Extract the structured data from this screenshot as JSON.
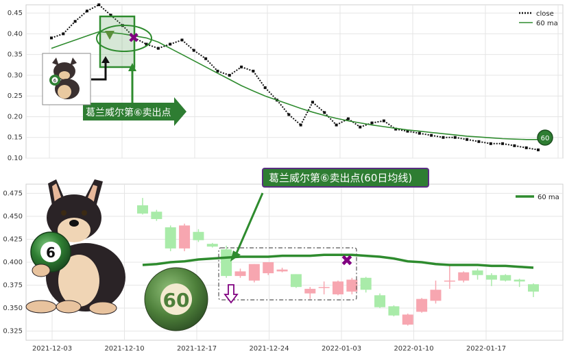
{
  "chart_data": [
    {
      "type": "line",
      "panel": "overview",
      "ylim": [
        0.1,
        0.47
      ],
      "yticks": [
        "0.10",
        "0.15",
        "0.20",
        "0.25",
        "0.30",
        "0.35",
        "0.40",
        "0.45"
      ],
      "ytick_values": [
        0.1,
        0.15,
        0.2,
        0.25,
        0.3,
        0.35,
        0.4,
        0.45
      ],
      "grid": true,
      "legend_position": "top-right",
      "series": [
        {
          "name": "close",
          "style": "dotted",
          "color": "#111111",
          "values": [
            0.39,
            0.4,
            0.43,
            0.455,
            0.47,
            0.445,
            0.42,
            0.39,
            0.375,
            0.365,
            0.375,
            0.385,
            0.36,
            0.34,
            0.31,
            0.3,
            0.32,
            0.31,
            0.27,
            0.24,
            0.205,
            0.18,
            0.235,
            0.21,
            0.18,
            0.195,
            0.175,
            0.185,
            0.19,
            0.17,
            0.165,
            0.16,
            0.155,
            0.15,
            0.15,
            0.145,
            0.14,
            0.135,
            0.135,
            0.13,
            0.125,
            0.12
          ]
        },
        {
          "name": "60 ma",
          "style": "solid",
          "color": "#2e8b2e",
          "values": [
            0.365,
            0.375,
            0.385,
            0.395,
            0.405,
            0.403,
            0.4,
            0.395,
            0.39,
            0.38,
            0.365,
            0.35,
            0.335,
            0.32,
            0.305,
            0.29,
            0.275,
            0.262,
            0.25,
            0.24,
            0.23,
            0.22,
            0.211,
            0.203,
            0.196,
            0.19,
            0.185,
            0.18,
            0.176,
            0.172,
            0.168,
            0.165,
            0.162,
            0.159,
            0.156,
            0.153,
            0.151,
            0.149,
            0.147,
            0.146,
            0.145,
            0.145
          ]
        }
      ],
      "annotation": "葛兰威尔第⑥卖出点",
      "ma_end_label": "60",
      "sell_point_index": 5
    },
    {
      "type": "candlestick",
      "panel": "zoom",
      "x_dates": [
        "2021-12-03",
        "2021-12-10",
        "2021-12-17",
        "2021-12-24",
        "2022-01-03",
        "2022-01-10",
        "2022-01-17"
      ],
      "ylim": [
        0.315,
        0.485
      ],
      "yticks": [
        "0.325",
        "0.350",
        "0.375",
        "0.400",
        "0.425",
        "0.450",
        "0.475"
      ],
      "ytick_values": [
        0.325,
        0.35,
        0.375,
        0.4,
        0.425,
        0.45,
        0.475
      ],
      "grid": true,
      "legend_position": "top-right",
      "legend": [
        "60 ma"
      ],
      "annotation": "葛兰威尔第⑥卖出点(60日均线)",
      "ma_color": "#2e8b2e",
      "up_color": "#f7a6b0",
      "down_color": "#a9eba9",
      "candles": [
        {
          "o": 0.462,
          "c": 0.453,
          "h": 0.47,
          "l": 0.452
        },
        {
          "o": 0.455,
          "c": 0.447,
          "h": 0.457,
          "l": 0.445
        },
        {
          "o": 0.438,
          "c": 0.415,
          "h": 0.44,
          "l": 0.412
        },
        {
          "o": 0.415,
          "c": 0.44,
          "h": 0.442,
          "l": 0.412
        },
        {
          "o": 0.433,
          "c": 0.424,
          "h": 0.436,
          "l": 0.422
        },
        {
          "o": 0.42,
          "c": 0.417,
          "h": 0.421,
          "l": 0.416
        },
        {
          "o": 0.414,
          "c": 0.385,
          "h": 0.418,
          "l": 0.383
        },
        {
          "o": 0.385,
          "c": 0.39,
          "h": 0.393,
          "l": 0.383
        },
        {
          "o": 0.38,
          "c": 0.398,
          "h": 0.398,
          "l": 0.378
        },
        {
          "o": 0.388,
          "c": 0.4,
          "h": 0.4,
          "l": 0.386
        },
        {
          "o": 0.39,
          "c": 0.392,
          "h": 0.394,
          "l": 0.389
        },
        {
          "o": 0.387,
          "c": 0.373,
          "h": 0.387,
          "l": 0.372
        },
        {
          "o": 0.366,
          "c": 0.371,
          "h": 0.373,
          "l": 0.36
        },
        {
          "o": 0.373,
          "c": 0.373,
          "h": 0.379,
          "l": 0.365
        },
        {
          "o": 0.365,
          "c": 0.379,
          "h": 0.38,
          "l": 0.364
        },
        {
          "o": 0.368,
          "c": 0.381,
          "h": 0.383,
          "l": 0.365
        },
        {
          "o": 0.383,
          "c": 0.37,
          "h": 0.384,
          "l": 0.367
        },
        {
          "o": 0.364,
          "c": 0.351,
          "h": 0.366,
          "l": 0.35
        },
        {
          "o": 0.352,
          "c": 0.342,
          "h": 0.353,
          "l": 0.341
        },
        {
          "o": 0.332,
          "c": 0.343,
          "h": 0.344,
          "l": 0.331
        },
        {
          "o": 0.346,
          "c": 0.36,
          "h": 0.361,
          "l": 0.345
        },
        {
          "o": 0.358,
          "c": 0.37,
          "h": 0.38,
          "l": 0.355
        },
        {
          "o": 0.38,
          "c": 0.38,
          "h": 0.397,
          "l": 0.371
        },
        {
          "o": 0.38,
          "c": 0.389,
          "h": 0.39,
          "l": 0.378
        },
        {
          "o": 0.391,
          "c": 0.386,
          "h": 0.393,
          "l": 0.381
        },
        {
          "o": 0.386,
          "c": 0.381,
          "h": 0.388,
          "l": 0.374
        },
        {
          "o": 0.386,
          "c": 0.38,
          "h": 0.387,
          "l": 0.379
        },
        {
          "o": 0.381,
          "c": 0.379,
          "h": 0.382,
          "l": 0.373
        },
        {
          "o": 0.376,
          "c": 0.368,
          "h": 0.377,
          "l": 0.362
        }
      ],
      "ma_values": [
        0.397,
        0.398,
        0.4,
        0.401,
        0.403,
        0.404,
        0.405,
        0.406,
        0.406,
        0.406,
        0.407,
        0.407,
        0.407,
        0.408,
        0.408,
        0.408,
        0.407,
        0.406,
        0.404,
        0.401,
        0.4,
        0.398,
        0.397,
        0.397,
        0.397,
        0.396,
        0.396,
        0.395,
        0.394
      ],
      "sell_point_index": 14,
      "ma_badge": "60",
      "number_badge": "6"
    }
  ]
}
